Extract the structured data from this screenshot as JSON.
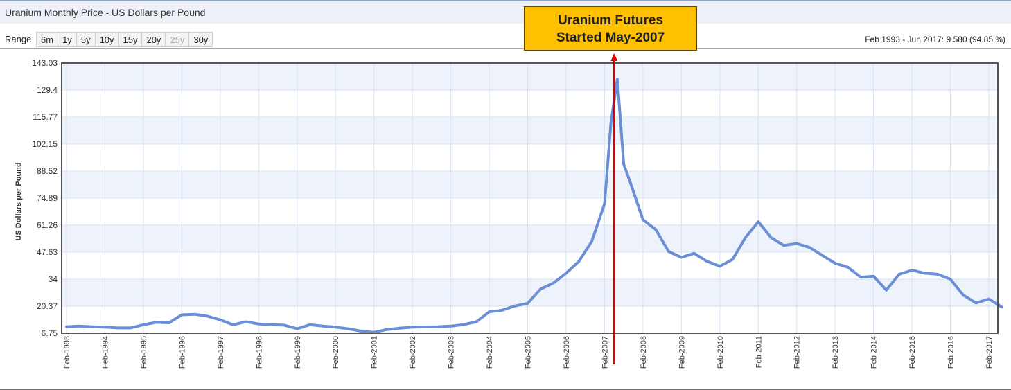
{
  "header": {
    "title": "Uranium Monthly Price - US Dollars per Pound"
  },
  "range": {
    "label": "Range",
    "buttons": [
      {
        "label": "6m",
        "enabled": true
      },
      {
        "label": "1y",
        "enabled": true
      },
      {
        "label": "5y",
        "enabled": true
      },
      {
        "label": "10y",
        "enabled": true
      },
      {
        "label": "15y",
        "enabled": true
      },
      {
        "label": "20y",
        "enabled": true
      },
      {
        "label": "25y",
        "enabled": false
      },
      {
        "label": "30y",
        "enabled": true
      }
    ],
    "summary": "Feb 1993 - Jun 2017: 9.580 (94.85 %)"
  },
  "annotation": {
    "line1": "Uranium Futures",
    "line2": "Started May-2007",
    "date": "2007-05",
    "color": "#e00000",
    "box_color": "#ffc000"
  },
  "colors": {
    "series": "#6b8fd6",
    "plot_band": "#eef2fb",
    "grid": "#d6e3f3"
  },
  "chart_data": {
    "type": "line",
    "title": "Uranium Monthly Price - US Dollars per Pound",
    "ylabel": "US Dollars per Pound",
    "xlabel": "",
    "ylim": [
      6.75,
      143.03
    ],
    "y_ticks": [
      "143.03",
      "129.4",
      "115.77",
      "102.15",
      "88.52",
      "74.89",
      "61.26",
      "47.63",
      "34",
      "20.37",
      "6.75"
    ],
    "x_ticks": [
      "Feb-1993",
      "Feb-1994",
      "Feb-1995",
      "Feb-1996",
      "Feb-1997",
      "Feb-1998",
      "Feb-1999",
      "Feb-2000",
      "Feb-2001",
      "Feb-2002",
      "Feb-2003",
      "Feb-2004",
      "Feb-2005",
      "Feb-2006",
      "Feb-2007",
      "Feb-2008",
      "Feb-2009",
      "Feb-2010",
      "Feb-2011",
      "Feb-2012",
      "Feb-2013",
      "Feb-2014",
      "Feb-2015",
      "Feb-2016",
      "Feb-2017"
    ],
    "grid": true,
    "series": [
      {
        "values": [
          [
            "1993-02",
            10.0
          ],
          [
            "1993-06",
            10.3
          ],
          [
            "1993-10",
            10.0
          ],
          [
            "1994-02",
            9.8
          ],
          [
            "1994-06",
            9.4
          ],
          [
            "1994-10",
            9.4
          ],
          [
            "1995-02",
            11.0
          ],
          [
            "1995-06",
            12.2
          ],
          [
            "1995-10",
            12.0
          ],
          [
            "1996-02",
            16.0
          ],
          [
            "1996-06",
            16.3
          ],
          [
            "1996-10",
            15.3
          ],
          [
            "1997-02",
            13.5
          ],
          [
            "1997-06",
            11.0
          ],
          [
            "1997-10",
            12.5
          ],
          [
            "1998-02",
            11.4
          ],
          [
            "1998-06",
            11.0
          ],
          [
            "1998-10",
            10.8
          ],
          [
            "1999-02",
            9.0
          ],
          [
            "1999-06",
            11.0
          ],
          [
            "1999-10",
            10.3
          ],
          [
            "2000-02",
            9.8
          ],
          [
            "2000-06",
            9.0
          ],
          [
            "2000-10",
            7.8
          ],
          [
            "2001-02",
            7.2
          ],
          [
            "2001-06",
            8.6
          ],
          [
            "2001-10",
            9.3
          ],
          [
            "2002-02",
            9.8
          ],
          [
            "2002-06",
            9.9
          ],
          [
            "2002-10",
            10.0
          ],
          [
            "2003-02",
            10.3
          ],
          [
            "2003-06",
            11.1
          ],
          [
            "2003-10",
            12.5
          ],
          [
            "2004-02",
            17.5
          ],
          [
            "2004-06",
            18.3
          ],
          [
            "2004-10",
            20.5
          ],
          [
            "2005-02",
            21.8
          ],
          [
            "2005-06",
            29.0
          ],
          [
            "2005-10",
            32.0
          ],
          [
            "2006-02",
            37.0
          ],
          [
            "2006-06",
            43.0
          ],
          [
            "2006-10",
            53.0
          ],
          [
            "2007-02",
            72.0
          ],
          [
            "2007-04",
            113.0
          ],
          [
            "2007-06",
            135.0
          ],
          [
            "2007-08",
            92.0
          ],
          [
            "2007-10",
            83.0
          ],
          [
            "2008-02",
            64.0
          ],
          [
            "2008-06",
            59.0
          ],
          [
            "2008-10",
            48.0
          ],
          [
            "2009-02",
            45.0
          ],
          [
            "2009-06",
            47.0
          ],
          [
            "2009-10",
            43.0
          ],
          [
            "2010-02",
            40.5
          ],
          [
            "2010-06",
            44.0
          ],
          [
            "2010-10",
            55.0
          ],
          [
            "2011-02",
            63.0
          ],
          [
            "2011-06",
            55.0
          ],
          [
            "2011-10",
            51.0
          ],
          [
            "2012-02",
            52.0
          ],
          [
            "2012-06",
            50.0
          ],
          [
            "2012-10",
            46.0
          ],
          [
            "2013-02",
            42.0
          ],
          [
            "2013-06",
            40.0
          ],
          [
            "2013-10",
            35.0
          ],
          [
            "2014-02",
            35.5
          ],
          [
            "2014-06",
            28.5
          ],
          [
            "2014-10",
            36.5
          ],
          [
            "2015-02",
            38.5
          ],
          [
            "2015-06",
            37.0
          ],
          [
            "2015-10",
            36.5
          ],
          [
            "2016-02",
            34.0
          ],
          [
            "2016-06",
            26.0
          ],
          [
            "2016-10",
            22.0
          ],
          [
            "2017-02",
            24.0
          ],
          [
            "2017-06",
            20.0
          ]
        ]
      }
    ]
  }
}
